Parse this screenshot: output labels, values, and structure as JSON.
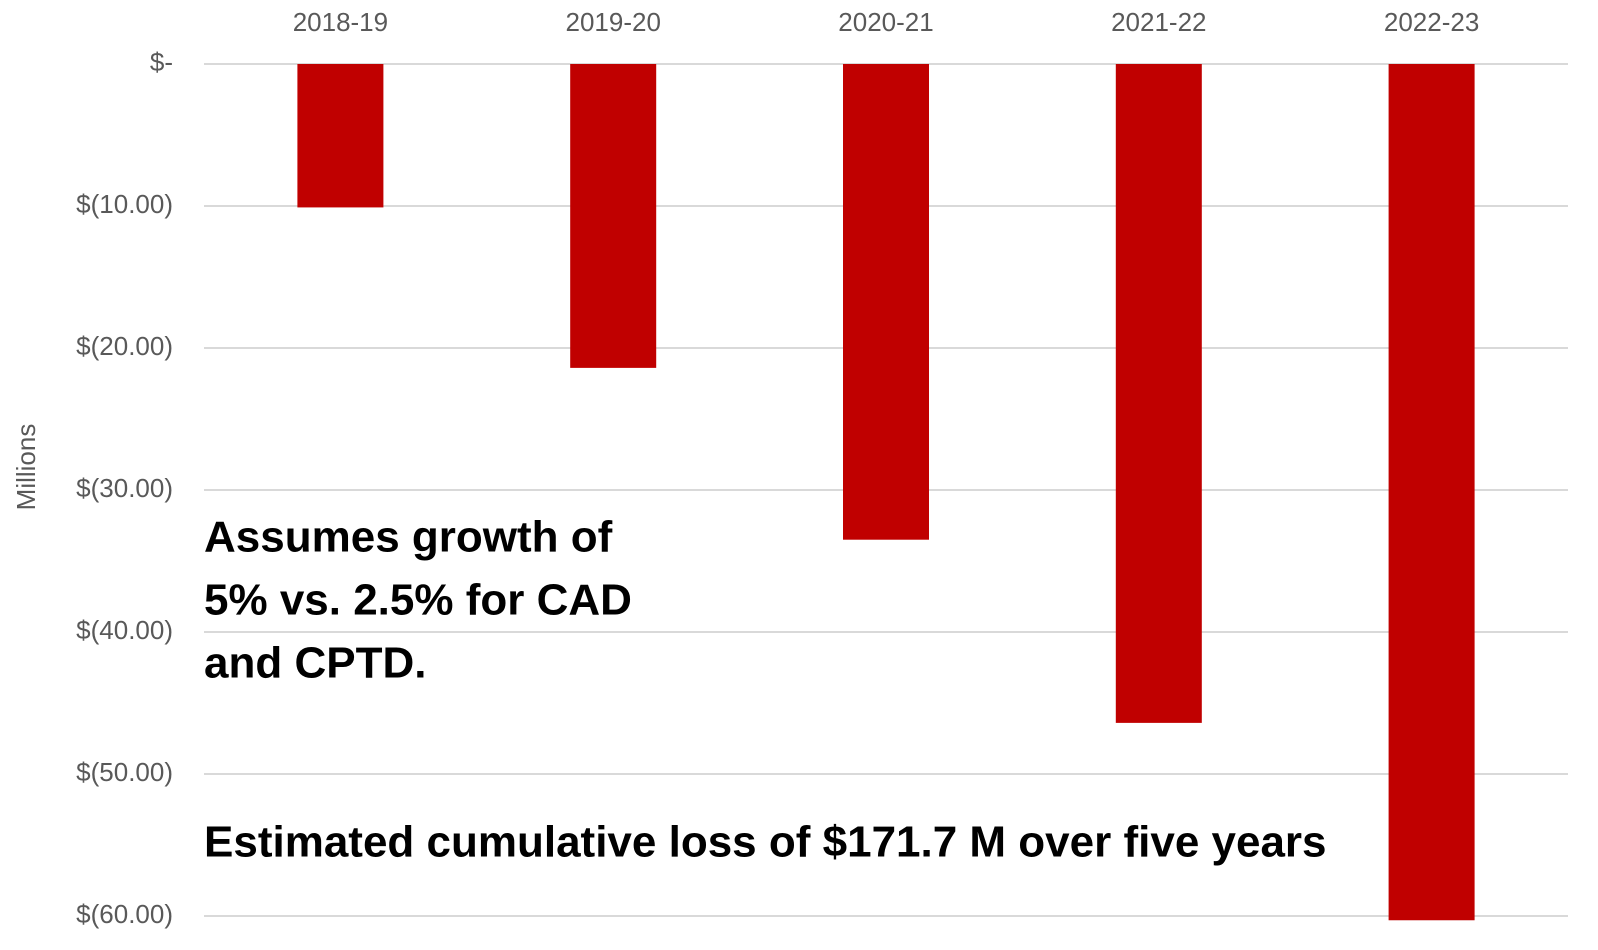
{
  "chart_data": {
    "type": "bar",
    "categories": [
      "2018-19",
      "2019-20",
      "2020-21",
      "2021-22",
      "2022-23"
    ],
    "values": [
      -10.1,
      -21.4,
      -33.5,
      -46.4,
      -60.3
    ],
    "color": "#c00000",
    "y_label": "Millions",
    "ylim": [
      -60,
      0
    ],
    "yticks": [
      {
        "value": 0,
        "label": "$-"
      },
      {
        "value": -10,
        "label": "$(10.00)"
      },
      {
        "value": -20,
        "label": "$(20.00)"
      },
      {
        "value": -30,
        "label": "$(30.00)"
      },
      {
        "value": -40,
        "label": "$(40.00)"
      },
      {
        "value": -50,
        "label": "$(50.00)"
      },
      {
        "value": -60,
        "label": "$(60.00)"
      }
    ],
    "grid": true,
    "annotations": [
      {
        "lines": [
          "Assumes growth of",
          "5% vs. 2.5% for CAD",
          "and CPTD."
        ]
      },
      {
        "lines": [
          "Estimated cumulative loss of $171.7 M over five years"
        ]
      }
    ]
  }
}
